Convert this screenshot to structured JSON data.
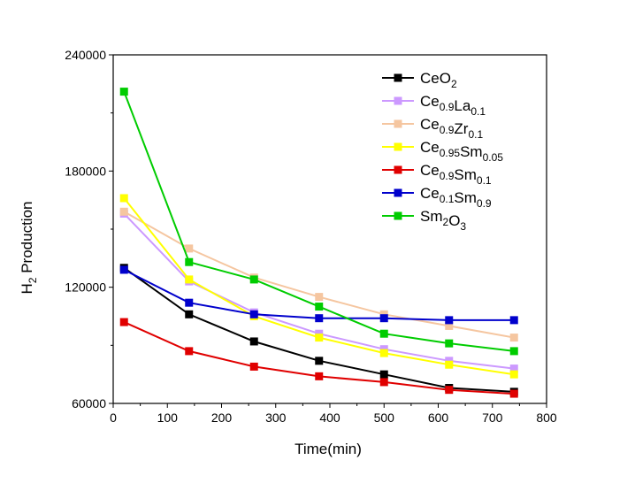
{
  "chart_data": {
    "type": "line",
    "xlabel": "Time(min)",
    "ylabel": "H",
    "ylabel_sub": "2",
    "ylabel_rest": " Production",
    "xlim": [
      0,
      800
    ],
    "ylim": [
      60000,
      240000
    ],
    "xticks": [
      0,
      100,
      200,
      300,
      400,
      500,
      600,
      700,
      800
    ],
    "yticks": [
      60000,
      120000,
      180000,
      240000
    ],
    "xtick_labels": [
      "0",
      "100",
      "200",
      "300",
      "400",
      "500",
      "600",
      "700",
      "800"
    ],
    "ytick_labels": [
      "60000",
      "120000",
      "180000",
      "240000"
    ],
    "grid": false,
    "legend_position": "top-right",
    "x": [
      20,
      140,
      260,
      380,
      500,
      620,
      740
    ],
    "series": [
      {
        "name": "CeO2",
        "legend": [
          [
            "Ce",
            ""
          ],
          [
            "O",
            "2"
          ]
        ],
        "color": "#000000",
        "values": [
          130000,
          106000,
          92000,
          82000,
          75000,
          68000,
          66000
        ]
      },
      {
        "name": "Ce0.9La0.1",
        "legend": [
          [
            "Ce",
            "0.9"
          ],
          [
            "La",
            "0.1"
          ]
        ],
        "color": "#CC99FF",
        "values": [
          158000,
          123000,
          107000,
          96000,
          88000,
          82000,
          78000
        ]
      },
      {
        "name": "Ce0.9Zr0.1",
        "legend": [
          [
            "Ce",
            "0.9"
          ],
          [
            "Zr",
            "0.1"
          ]
        ],
        "color": "#F5C6A0",
        "values": [
          159000,
          140000,
          125000,
          115000,
          106000,
          100000,
          94000
        ]
      },
      {
        "name": "Ce0.95Sm0.05",
        "legend": [
          [
            "Ce",
            "0.95"
          ],
          [
            "Sm",
            "0.05"
          ]
        ],
        "color": "#FFFF00",
        "values": [
          166000,
          124000,
          105000,
          94000,
          86000,
          80000,
          75000
        ]
      },
      {
        "name": "Ce0.9Sm0.1",
        "legend": [
          [
            "Ce",
            "0.9"
          ],
          [
            "Sm",
            "0.1"
          ]
        ],
        "color": "#E00000",
        "values": [
          102000,
          87000,
          79000,
          74000,
          71000,
          67000,
          65000
        ]
      },
      {
        "name": "Ce0.1Sm0.9",
        "legend": [
          [
            "Ce",
            "0.1"
          ],
          [
            "Sm",
            "0.9"
          ]
        ],
        "color": "#0000CC",
        "values": [
          129000,
          112000,
          106000,
          104000,
          104000,
          103000,
          103000
        ]
      },
      {
        "name": "Sm2O3",
        "legend": [
          [
            "Sm",
            "2"
          ],
          [
            "O",
            "3"
          ]
        ],
        "color": "#00CC00",
        "values": [
          221000,
          133000,
          124000,
          110000,
          96000,
          91000,
          87000
        ]
      }
    ]
  }
}
